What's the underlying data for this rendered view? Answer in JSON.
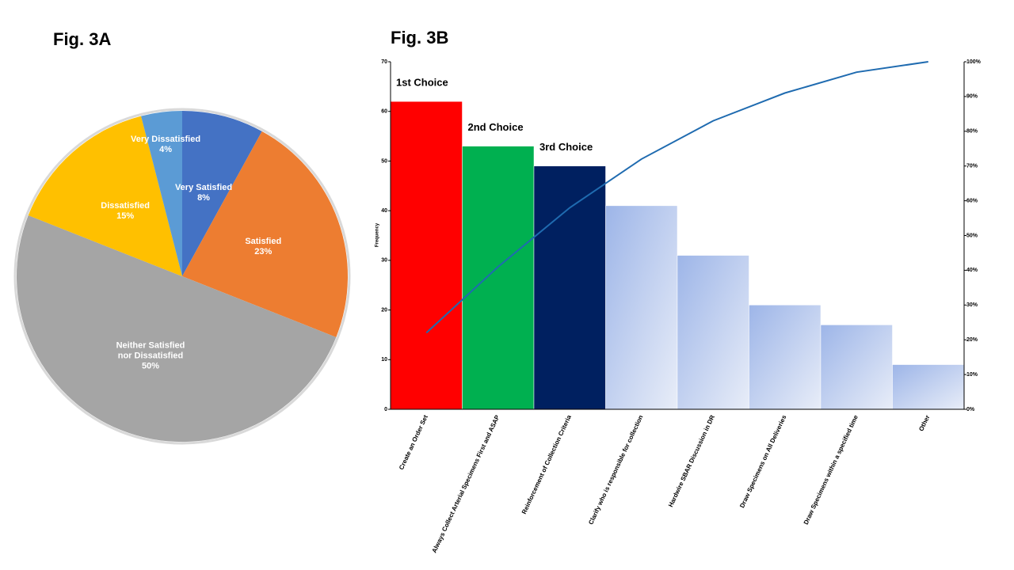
{
  "chart_data": [
    {
      "type": "pie",
      "title": "Fig. 3A",
      "categories": [
        "Very Satisfied",
        "Satisfied",
        "Neither Satisfied nor Dissatisfied",
        "Dissatisfied",
        "Very Dissatisfied"
      ],
      "values": [
        8,
        23,
        50,
        15,
        4
      ],
      "value_labels": [
        "8%",
        "23%",
        "50%",
        "15%",
        "4%"
      ],
      "colors": [
        "#4472c4",
        "#ed7d31",
        "#a5a5a5",
        "#ffc000",
        "#5b9bd5"
      ]
    },
    {
      "type": "pareto",
      "title": "Fig. 3B",
      "y_label": "Frequency",
      "categories": [
        "Create an Order Set",
        "Always Collect Arterial Specimens First and ASAP",
        "Reinforcement of Collection Criteria",
        "Clarify who is responsible for collection",
        "Hardwire SBAR Discussion in DR",
        "Draw Specimens on All Deliveries",
        "Draw Specimens within a specified time",
        "Other"
      ],
      "series": [
        {
          "values": [
            62,
            53,
            49,
            41,
            31,
            21,
            17,
            9
          ],
          "colors": [
            "#ff0000",
            "#00b050",
            "#002060",
            "#9db5e8",
            "#9db5e8",
            "#9db5e8",
            "#9db5e8",
            "#9db5e8"
          ]
        },
        {
          "axis": "y2",
          "color": "#1f6bb0",
          "values": [
            22,
            41,
            58,
            72,
            83,
            91,
            97,
            100
          ]
        }
      ],
      "annotations": [
        "1st Choice",
        "2nd Choice",
        "3rd Choice"
      ],
      "ylim": [
        0,
        70
      ],
      "yticks": [
        0,
        10,
        20,
        30,
        40,
        50,
        60,
        70
      ],
      "y2lim": [
        0,
        100
      ],
      "y2ticks": [
        {
          "value": 0,
          "label": "0%"
        },
        {
          "value": 10,
          "label": "10%"
        },
        {
          "value": 20,
          "label": "20%"
        },
        {
          "value": 30,
          "label": "30%"
        },
        {
          "value": 40,
          "label": "40%"
        },
        {
          "value": 50,
          "label": "50%"
        },
        {
          "value": 60,
          "label": "60%"
        },
        {
          "value": 70,
          "label": "70%"
        },
        {
          "value": 80,
          "label": "80%"
        },
        {
          "value": 90,
          "label": "90%"
        },
        {
          "value": 100,
          "label": "100%"
        }
      ]
    }
  ]
}
